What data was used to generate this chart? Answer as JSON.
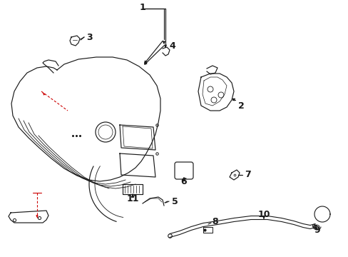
{
  "bg_color": "#ffffff",
  "line_color": "#1a1a1a",
  "red_color": "#cc0000"
}
